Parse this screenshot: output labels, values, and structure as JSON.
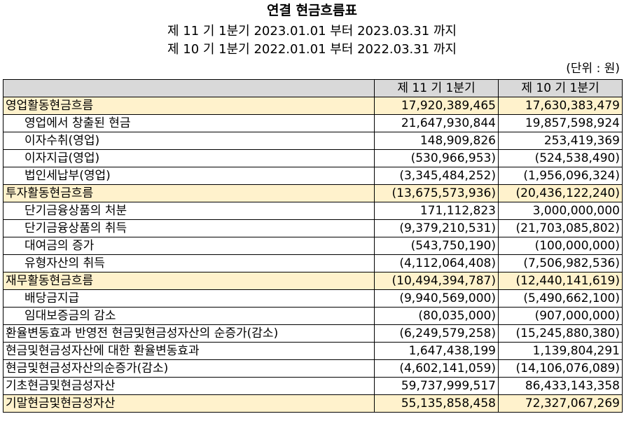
{
  "document": {
    "title": "연결 현금흐름표",
    "period_current": "제 11 기 1분기 2023.01.01 부터 2023.03.31 까지",
    "period_prior": "제 10 기 1분기 2022.01.01 부터 2022.03.31 까지",
    "unit": "(단위 : 원)"
  },
  "table": {
    "headers": [
      "",
      "제 11 기 1분기",
      "제 10 기 1분기"
    ],
    "rows": [
      {
        "label": "영업활동현금흐름",
        "current": "17,920,389,465",
        "prior": "17,630,383,479"
      },
      {
        "label": "영업에서 창출된 현금",
        "current": "21,647,930,844",
        "prior": "19,857,598,924"
      },
      {
        "label": "이자수취(영업)",
        "current": "148,909,826",
        "prior": "253,419,369"
      },
      {
        "label": "이자지급(영업)",
        "current": "(530,966,953)",
        "prior": "(524,538,490)"
      },
      {
        "label": "법인세납부(영업)",
        "current": "(3,345,484,252)",
        "prior": "(1,956,096,324)"
      },
      {
        "label": "투자활동현금흐름",
        "current": "(13,675,573,936)",
        "prior": "(20,436,122,240)"
      },
      {
        "label": "단기금융상품의 처분",
        "current": "171,112,823",
        "prior": "3,000,000,000"
      },
      {
        "label": "단기금융상품의 취득",
        "current": "(9,379,210,531)",
        "prior": "(21,703,085,802)"
      },
      {
        "label": "대여금의 증가",
        "current": "(543,750,190)",
        "prior": "(100,000,000)"
      },
      {
        "label": "유형자산의 취득",
        "current": "(4,112,064,408)",
        "prior": "(7,506,982,536)"
      },
      {
        "label": "재무활동현금흐름",
        "current": "(10,494,394,787)",
        "prior": "(12,440,141,619)"
      },
      {
        "label": "배당금지급",
        "current": "(9,940,569,000)",
        "prior": "(5,490,662,100)"
      },
      {
        "label": "임대보증금의 감소",
        "current": "(80,035,000)",
        "prior": "(907,000,000)"
      },
      {
        "label": "환율변동효과 반영전 현금및현금성자산의 순증가(감소)",
        "current": "(6,249,579,258)",
        "prior": "(15,245,880,380)"
      },
      {
        "label": "현금및현금성자산에 대한 환율변동효과",
        "current": "1,647,438,199",
        "prior": "1,139,804,291"
      },
      {
        "label": "현금및현금성자산의순증가(감소)",
        "current": "(4,602,141,059)",
        "prior": "(14,106,076,089)"
      },
      {
        "label": "기초현금및현금성자산",
        "current": "59,737,999,517",
        "prior": "86,433,143,358"
      },
      {
        "label": "기말현금및현금성자산",
        "current": "55,135,858,458",
        "prior": "72,327,067,269"
      }
    ]
  },
  "colors": {
    "header_bg": "#d9d9d9",
    "section_bg": "#fff2cc",
    "border": "#000000"
  }
}
